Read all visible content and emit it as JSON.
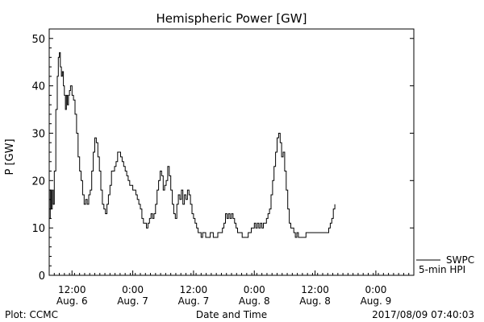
{
  "chart_data": {
    "type": "line",
    "title": "Hemispheric Power [GW]",
    "xlabel": "Date and Time",
    "ylabel": "P [GW]",
    "ylim": [
      0,
      52
    ],
    "yticks": [
      0,
      10,
      20,
      30,
      40,
      50
    ],
    "xlim_hours": [
      0,
      72
    ],
    "xticks": [
      {
        "hour": 4.5,
        "time": "12:00",
        "date": "Aug. 6"
      },
      {
        "hour": 16.5,
        "time": "0:00",
        "date": "Aug. 7"
      },
      {
        "hour": 28.5,
        "time": "12:00",
        "date": "Aug. 7"
      },
      {
        "hour": 40.5,
        "time": "0:00",
        "date": "Aug. 8"
      },
      {
        "hour": 52.5,
        "time": "12:00",
        "date": "Aug. 8"
      },
      {
        "hour": 64.5,
        "time": "0:00",
        "date": "Aug. 9"
      }
    ],
    "legend": {
      "position": "bottom-right",
      "lines": [
        "SWPC",
        "5-min HPI"
      ]
    },
    "series": [
      {
        "name": "SWPC 5-min HPI",
        "points": [
          [
            0.0,
            12
          ],
          [
            0.2,
            18
          ],
          [
            0.4,
            14
          ],
          [
            0.6,
            18
          ],
          [
            0.8,
            15
          ],
          [
            1.0,
            22
          ],
          [
            1.3,
            35
          ],
          [
            1.6,
            42
          ],
          [
            1.8,
            46
          ],
          [
            2.0,
            47
          ],
          [
            2.2,
            44
          ],
          [
            2.4,
            42
          ],
          [
            2.6,
            43
          ],
          [
            2.8,
            40
          ],
          [
            3.0,
            38
          ],
          [
            3.2,
            35
          ],
          [
            3.4,
            38
          ],
          [
            3.6,
            36
          ],
          [
            3.8,
            38
          ],
          [
            4.0,
            39
          ],
          [
            4.2,
            40
          ],
          [
            4.5,
            38
          ],
          [
            4.8,
            37
          ],
          [
            5.1,
            34
          ],
          [
            5.4,
            30
          ],
          [
            5.7,
            25
          ],
          [
            6.0,
            22
          ],
          [
            6.3,
            20
          ],
          [
            6.6,
            17
          ],
          [
            6.9,
            15
          ],
          [
            7.2,
            16
          ],
          [
            7.5,
            15
          ],
          [
            7.8,
            17
          ],
          [
            8.1,
            18
          ],
          [
            8.4,
            22
          ],
          [
            8.7,
            26
          ],
          [
            9.0,
            29
          ],
          [
            9.3,
            28
          ],
          [
            9.6,
            25
          ],
          [
            9.9,
            22
          ],
          [
            10.2,
            18
          ],
          [
            10.5,
            15
          ],
          [
            10.8,
            14
          ],
          [
            11.1,
            13
          ],
          [
            11.4,
            15
          ],
          [
            11.7,
            17
          ],
          [
            12.0,
            19
          ],
          [
            12.3,
            22
          ],
          [
            12.6,
            22
          ],
          [
            12.9,
            23
          ],
          [
            13.2,
            24
          ],
          [
            13.5,
            26
          ],
          [
            13.8,
            26
          ],
          [
            14.1,
            25
          ],
          [
            14.4,
            24
          ],
          [
            14.7,
            23
          ],
          [
            15.0,
            22
          ],
          [
            15.3,
            21
          ],
          [
            15.6,
            20
          ],
          [
            15.9,
            19
          ],
          [
            16.2,
            19
          ],
          [
            16.5,
            18
          ],
          [
            16.8,
            18
          ],
          [
            17.1,
            17
          ],
          [
            17.4,
            16
          ],
          [
            17.7,
            15
          ],
          [
            18.0,
            14
          ],
          [
            18.3,
            12
          ],
          [
            18.6,
            11
          ],
          [
            18.9,
            11
          ],
          [
            19.2,
            10
          ],
          [
            19.5,
            11
          ],
          [
            19.8,
            12
          ],
          [
            20.1,
            13
          ],
          [
            20.4,
            12
          ],
          [
            20.7,
            13
          ],
          [
            21.0,
            15
          ],
          [
            21.3,
            18
          ],
          [
            21.6,
            20
          ],
          [
            21.9,
            22
          ],
          [
            22.2,
            21
          ],
          [
            22.5,
            18
          ],
          [
            22.8,
            19
          ],
          [
            23.1,
            20
          ],
          [
            23.4,
            23
          ],
          [
            23.7,
            21
          ],
          [
            24.0,
            18
          ],
          [
            24.3,
            15
          ],
          [
            24.6,
            13
          ],
          [
            24.9,
            12
          ],
          [
            25.2,
            15
          ],
          [
            25.5,
            17
          ],
          [
            25.8,
            16
          ],
          [
            26.1,
            18
          ],
          [
            26.4,
            15
          ],
          [
            26.7,
            17
          ],
          [
            27.0,
            16
          ],
          [
            27.3,
            18
          ],
          [
            27.6,
            17
          ],
          [
            27.9,
            15
          ],
          [
            28.2,
            13
          ],
          [
            28.5,
            12
          ],
          [
            28.8,
            11
          ],
          [
            29.1,
            10
          ],
          [
            29.4,
            9
          ],
          [
            29.7,
            9
          ],
          [
            30.0,
            8
          ],
          [
            30.3,
            9
          ],
          [
            30.6,
            9
          ],
          [
            30.9,
            8
          ],
          [
            31.2,
            8
          ],
          [
            31.5,
            8
          ],
          [
            31.8,
            9
          ],
          [
            32.1,
            9
          ],
          [
            32.4,
            8
          ],
          [
            32.7,
            8
          ],
          [
            33.0,
            8
          ],
          [
            33.3,
            9
          ],
          [
            33.6,
            9
          ],
          [
            33.9,
            9
          ],
          [
            34.2,
            10
          ],
          [
            34.5,
            11
          ],
          [
            34.8,
            13
          ],
          [
            35.1,
            12
          ],
          [
            35.4,
            13
          ],
          [
            35.7,
            12
          ],
          [
            36.0,
            13
          ],
          [
            36.3,
            12
          ],
          [
            36.6,
            11
          ],
          [
            36.9,
            10
          ],
          [
            37.2,
            9
          ],
          [
            37.5,
            9
          ],
          [
            37.8,
            9
          ],
          [
            38.1,
            8
          ],
          [
            38.4,
            8
          ],
          [
            38.7,
            8
          ],
          [
            39.0,
            8
          ],
          [
            39.3,
            9
          ],
          [
            39.6,
            9
          ],
          [
            39.9,
            10
          ],
          [
            40.2,
            10
          ],
          [
            40.5,
            11
          ],
          [
            40.8,
            10
          ],
          [
            41.1,
            11
          ],
          [
            41.4,
            10
          ],
          [
            41.7,
            11
          ],
          [
            42.0,
            10
          ],
          [
            42.3,
            11
          ],
          [
            42.6,
            11
          ],
          [
            42.9,
            12
          ],
          [
            43.2,
            13
          ],
          [
            43.5,
            14
          ],
          [
            43.8,
            17
          ],
          [
            44.1,
            20
          ],
          [
            44.4,
            23
          ],
          [
            44.7,
            26
          ],
          [
            45.0,
            29
          ],
          [
            45.3,
            30
          ],
          [
            45.6,
            28
          ],
          [
            45.9,
            25
          ],
          [
            46.2,
            26
          ],
          [
            46.5,
            22
          ],
          [
            46.8,
            18
          ],
          [
            47.1,
            14
          ],
          [
            47.4,
            11
          ],
          [
            47.7,
            10
          ],
          [
            48.0,
            10
          ],
          [
            48.3,
            9
          ],
          [
            48.6,
            8
          ],
          [
            48.9,
            9
          ],
          [
            49.2,
            8
          ],
          [
            49.5,
            8
          ],
          [
            49.8,
            8
          ],
          [
            50.1,
            8
          ],
          [
            50.4,
            8
          ],
          [
            50.7,
            9
          ],
          [
            51.0,
            9
          ],
          [
            51.3,
            9
          ],
          [
            51.6,
            9
          ],
          [
            51.9,
            9
          ],
          [
            52.2,
            9
          ],
          [
            52.5,
            9
          ],
          [
            52.8,
            9
          ],
          [
            53.1,
            9
          ],
          [
            53.4,
            9
          ],
          [
            53.7,
            9
          ],
          [
            54.0,
            9
          ],
          [
            54.3,
            9
          ],
          [
            54.6,
            9
          ],
          [
            54.9,
            9
          ],
          [
            55.2,
            10
          ],
          [
            55.5,
            11
          ],
          [
            55.8,
            12
          ],
          [
            56.1,
            14
          ],
          [
            56.4,
            15
          ]
        ]
      }
    ]
  },
  "footer": {
    "plot_credit": "Plot: CCMC",
    "timestamp": "2017/08/09 07:40:03"
  }
}
